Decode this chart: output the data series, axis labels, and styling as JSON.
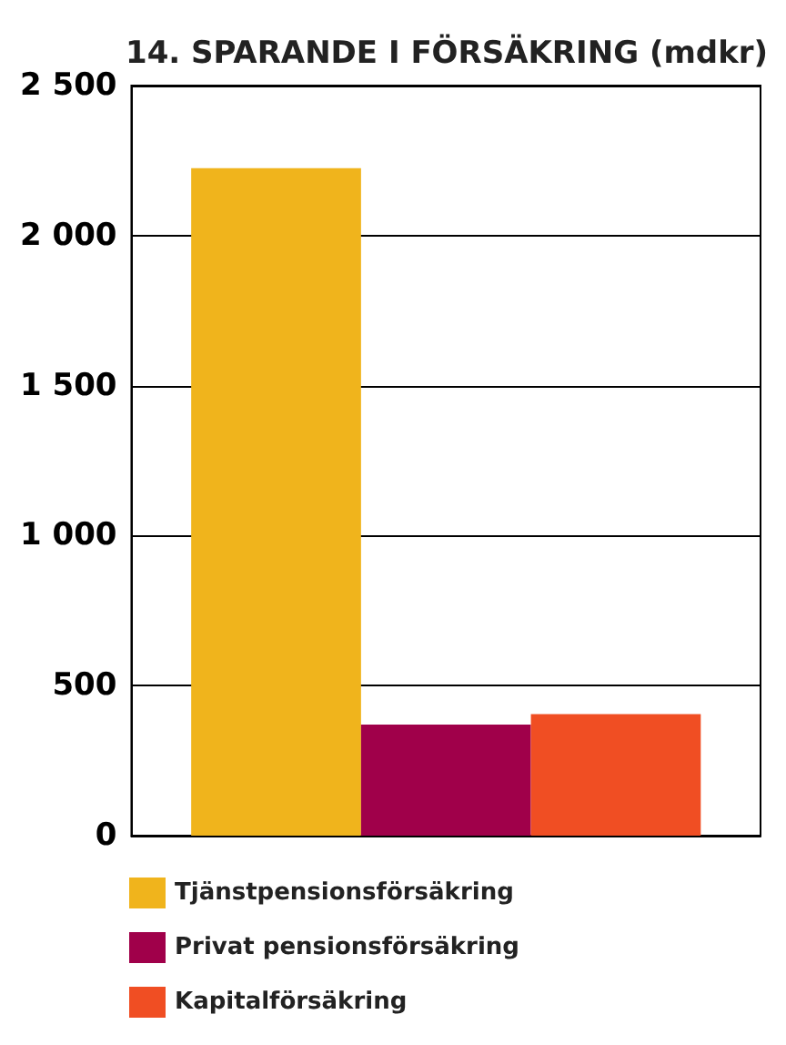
{
  "chart_data": {
    "type": "bar",
    "title": "14. SPARANDE I FÖRSÄKRING (mdkr)",
    "categories": [
      null
    ],
    "series": [
      {
        "name": "Tjänstpensionsförsäkring",
        "color": "#f0b41c",
        "values": [
          2225
        ]
      },
      {
        "name": "Privat pensionsförsäkring",
        "color": "#a0004a",
        "values": [
          370
        ]
      },
      {
        "name": "Kapitalförsäkring",
        "color": "#f04e23",
        "values": [
          405
        ]
      }
    ],
    "ylim": [
      0,
      2500
    ],
    "yticks": [
      0,
      500,
      {
        "value": 1000,
        "label": "1 000"
      },
      {
        "value": 1500,
        "label": "1 500"
      },
      {
        "value": 2000,
        "label": "2 000"
      },
      {
        "value": 2500,
        "label": "2 500"
      }
    ],
    "grid": "y",
    "legend": "bottom"
  }
}
